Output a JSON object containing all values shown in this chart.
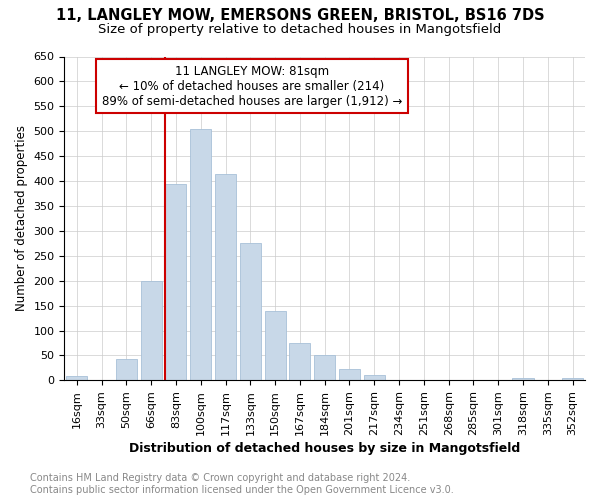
{
  "title1": "11, LANGLEY MOW, EMERSONS GREEN, BRISTOL, BS16 7DS",
  "title2": "Size of property relative to detached houses in Mangotsfield",
  "xlabel": "Distribution of detached houses by size in Mangotsfield",
  "ylabel": "Number of detached properties",
  "categories": [
    "16sqm",
    "33sqm",
    "50sqm",
    "66sqm",
    "83sqm",
    "100sqm",
    "117sqm",
    "133sqm",
    "150sqm",
    "167sqm",
    "184sqm",
    "201sqm",
    "217sqm",
    "234sqm",
    "251sqm",
    "268sqm",
    "285sqm",
    "301sqm",
    "318sqm",
    "335sqm",
    "352sqm"
  ],
  "values": [
    8,
    0,
    43,
    200,
    395,
    505,
    415,
    275,
    140,
    75,
    50,
    23,
    10,
    0,
    0,
    0,
    0,
    0,
    5,
    0,
    5
  ],
  "bar_color": "#c8d8e8",
  "bar_edge_color": "#a8c0d8",
  "property_line_index": 4,
  "annotation_line1": "11 LANGLEY MOW: 81sqm",
  "annotation_line2": "← 10% of detached houses are smaller (214)",
  "annotation_line3": "89% of semi-detached houses are larger (1,912) →",
  "annotation_box_color": "#ffffff",
  "annotation_box_edge": "#cc0000",
  "property_line_color": "#cc0000",
  "ylim": [
    0,
    650
  ],
  "yticks": [
    0,
    50,
    100,
    150,
    200,
    250,
    300,
    350,
    400,
    450,
    500,
    550,
    600,
    650
  ],
  "footer1": "Contains HM Land Registry data © Crown copyright and database right 2024.",
  "footer2": "Contains public sector information licensed under the Open Government Licence v3.0.",
  "title_fontsize": 10.5,
  "subtitle_fontsize": 9.5,
  "xlabel_fontsize": 9,
  "ylabel_fontsize": 8.5,
  "tick_fontsize": 8,
  "annot_fontsize": 8.5,
  "footer_fontsize": 7,
  "background_color": "#ffffff",
  "grid_color": "#cccccc"
}
